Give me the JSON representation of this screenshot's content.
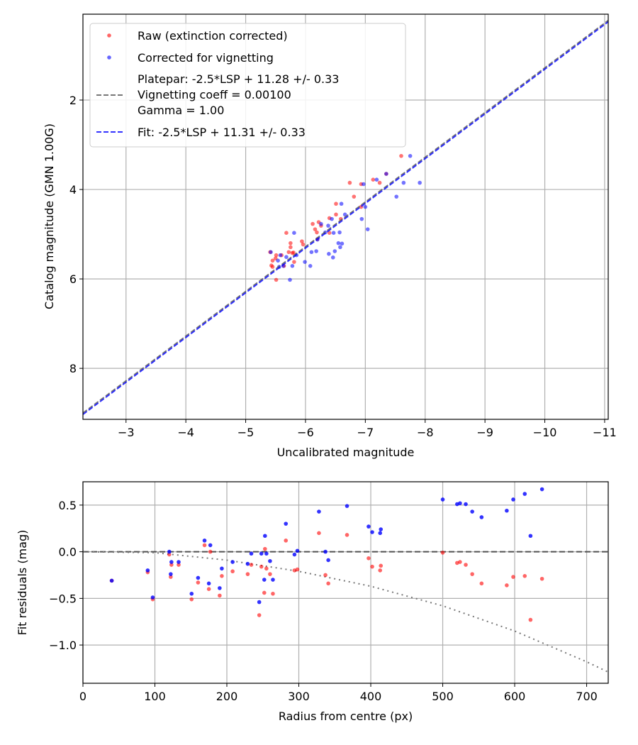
{
  "chart_data": [
    {
      "type": "scatter",
      "xlabel": "Uncalibrated magnitude",
      "ylabel": "Catalog magnitude (GMN 1.00G)",
      "xlim": [
        -2.28,
        -11.06
      ],
      "ylim": [
        9.14,
        0.08
      ],
      "grid": true,
      "legend_placement": "top-left",
      "xticks": [
        -3,
        -4,
        -5,
        -6,
        -7,
        -8,
        -9,
        -10,
        -11
      ],
      "xtick_labels": [
        "−3",
        "−4",
        "−5",
        "−6",
        "−7",
        "−8",
        "−9",
        "−10",
        "−11"
      ],
      "yticks": [
        2,
        4,
        6,
        8
      ],
      "ytick_labels": [
        "2",
        "4",
        "6",
        "8"
      ],
      "legend": [
        "Raw (extinction corrected)",
        "Corrected for vignetting",
        "Platepar: -2.5*LSP + 11.28 +/- 0.33",
        "Vignetting coeff = 0.00100",
        "Gamma = 1.00",
        "Fit: -2.5*LSP + 11.31 +/- 0.33"
      ],
      "colors": {
        "raw": "#ff0000",
        "corrected": "#0000ff",
        "platepar": "#555555",
        "fit": "#0000ff"
      },
      "lines": [
        {
          "name": "Platepar",
          "slope": 1,
          "intercept": 11.28,
          "style": "dashed"
        },
        {
          "name": "Fit",
          "slope": 1,
          "intercept": 11.31,
          "style": "dashed"
        }
      ],
      "series": [
        {
          "name": "Raw (extinction corrected)",
          "points": [
            [
              -7.6,
              3.25
            ],
            [
              -6.74,
              3.85
            ],
            [
              -6.93,
              3.88
            ],
            [
              -7.13,
              3.78
            ],
            [
              -7.24,
              3.85
            ],
            [
              -6.81,
              4.16
            ],
            [
              -6.51,
              4.32
            ],
            [
              -6.93,
              4.39
            ],
            [
              -6.51,
              4.56
            ],
            [
              -6.4,
              4.64
            ],
            [
              -6.59,
              4.66
            ],
            [
              -6.12,
              4.77
            ],
            [
              -6.22,
              4.73
            ],
            [
              -6.26,
              4.81
            ],
            [
              -6.16,
              4.89
            ],
            [
              -6.19,
              4.96
            ],
            [
              -6.4,
              4.97
            ],
            [
              -5.68,
              4.97
            ],
            [
              -5.75,
              5.2
            ],
            [
              -5.75,
              5.29
            ],
            [
              -5.94,
              5.16
            ],
            [
              -5.96,
              5.23
            ],
            [
              -5.72,
              5.4
            ],
            [
              -5.78,
              5.42
            ],
            [
              -5.41,
              5.4
            ],
            [
              -5.51,
              5.47
            ],
            [
              -5.6,
              5.47
            ],
            [
              -5.5,
              5.54
            ],
            [
              -5.45,
              5.59
            ],
            [
              -5.43,
              5.7
            ],
            [
              -5.45,
              5.73
            ],
            [
              -5.64,
              5.71
            ],
            [
              -5.81,
              5.62
            ],
            [
              -5.51,
              6.02
            ],
            [
              -7.35,
              3.65
            ],
            [
              -5.8,
              5.41
            ],
            [
              -6.2,
              5.11
            ]
          ]
        },
        {
          "name": "Corrected for vignetting",
          "points": [
            [
              -7.75,
              3.25
            ],
            [
              -7.91,
              3.85
            ],
            [
              -7.64,
              3.85
            ],
            [
              -7.52,
              4.16
            ],
            [
              -7.19,
              3.78
            ],
            [
              -6.97,
              3.88
            ],
            [
              -7.0,
              4.39
            ],
            [
              -6.94,
              4.66
            ],
            [
              -7.04,
              4.89
            ],
            [
              -6.6,
              4.32
            ],
            [
              -6.66,
              4.56
            ],
            [
              -6.44,
              4.66
            ],
            [
              -6.38,
              4.81
            ],
            [
              -6.26,
              4.77
            ],
            [
              -6.47,
              4.97
            ],
            [
              -6.57,
              4.96
            ],
            [
              -6.55,
              5.2
            ],
            [
              -6.61,
              5.21
            ],
            [
              -6.58,
              5.29
            ],
            [
              -6.49,
              5.38
            ],
            [
              -6.39,
              5.44
            ],
            [
              -6.46,
              5.52
            ],
            [
              -6.18,
              5.38
            ],
            [
              -6.1,
              5.4
            ],
            [
              -6.33,
              4.96
            ],
            [
              -6.2,
              5.12
            ],
            [
              -5.81,
              4.97
            ],
            [
              -5.85,
              5.47
            ],
            [
              -5.68,
              5.51
            ],
            [
              -5.54,
              5.59
            ],
            [
              -5.58,
              5.47
            ],
            [
              -5.42,
              5.4
            ],
            [
              -5.63,
              5.71
            ],
            [
              -5.78,
              5.71
            ],
            [
              -5.56,
              5.73
            ],
            [
              -5.99,
              5.62
            ],
            [
              -6.08,
              5.71
            ],
            [
              -5.74,
              6.02
            ],
            [
              -7.35,
              3.65
            ]
          ]
        }
      ]
    },
    {
      "type": "scatter",
      "xlabel": "Radius from centre (px)",
      "ylabel": "Fit residuals (mag)",
      "xlim": [
        0,
        730
      ],
      "ylim": [
        -1.41,
        0.75
      ],
      "grid": true,
      "xticks": [
        0,
        100,
        200,
        300,
        400,
        500,
        600,
        700
      ],
      "xtick_labels": [
        "0",
        "100",
        "200",
        "300",
        "400",
        "500",
        "600",
        "700"
      ],
      "yticks": [
        0.5,
        0.0,
        -0.5,
        -1.0
      ],
      "ytick_labels": [
        "0.5",
        "0.0",
        "−0.5",
        "−1.0"
      ],
      "zero_line": 0,
      "vignetting_curve": [
        [
          0,
          0
        ],
        [
          100,
          -0.01
        ],
        [
          200,
          -0.09
        ],
        [
          300,
          -0.21
        ],
        [
          400,
          -0.37
        ],
        [
          500,
          -0.58
        ],
        [
          600,
          -0.85
        ],
        [
          700,
          -1.18
        ],
        [
          730,
          -1.29
        ]
      ],
      "radius": [
        40,
        90,
        97,
        120,
        122,
        123,
        133,
        151,
        160,
        169,
        175,
        177,
        190,
        193,
        208,
        229,
        234,
        245,
        248,
        252,
        253,
        255,
        260,
        264,
        282,
        294,
        298,
        328,
        337,
        341,
        367,
        397,
        402,
        413,
        414,
        500,
        520,
        524,
        532,
        541,
        554,
        589,
        598,
        614,
        622,
        638
      ],
      "raw_residuals": [
        -0.31,
        -0.22,
        -0.51,
        -0.03,
        -0.27,
        -0.14,
        -0.14,
        -0.51,
        -0.33,
        0.07,
        -0.4,
        0.0,
        -0.47,
        -0.26,
        -0.21,
        -0.24,
        -0.14,
        -0.68,
        -0.16,
        -0.44,
        0.03,
        -0.18,
        -0.24,
        -0.45,
        0.12,
        -0.2,
        -0.19,
        0.2,
        -0.25,
        -0.34,
        0.18,
        -0.07,
        -0.16,
        -0.2,
        -0.15,
        -0.01,
        -0.12,
        -0.11,
        -0.14,
        -0.24,
        -0.34,
        -0.36,
        -0.27,
        -0.26,
        -0.73,
        -0.29
      ],
      "corrected_residuals": [
        -0.31,
        -0.2,
        -0.49,
        0.0,
        -0.24,
        -0.11,
        -0.11,
        -0.45,
        -0.28,
        0.12,
        -0.34,
        0.07,
        -0.39,
        -0.18,
        -0.11,
        -0.13,
        -0.02,
        -0.54,
        -0.02,
        -0.3,
        0.17,
        -0.02,
        -0.1,
        -0.3,
        0.3,
        -0.03,
        0.01,
        0.43,
        0.0,
        -0.09,
        0.49,
        0.27,
        0.21,
        0.2,
        0.24,
        0.56,
        0.51,
        0.52,
        0.51,
        0.43,
        0.37,
        0.44,
        0.56,
        0.62,
        0.17,
        0.67
      ]
    }
  ]
}
